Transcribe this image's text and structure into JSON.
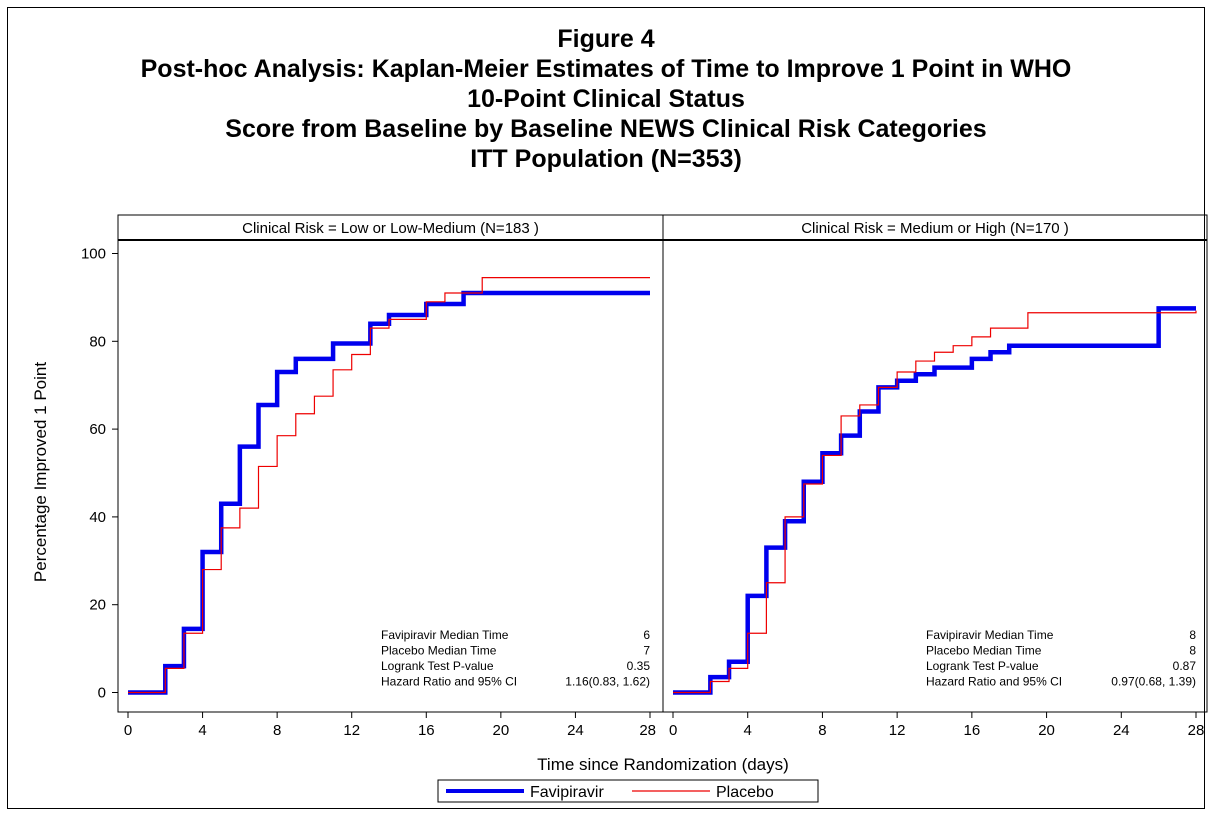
{
  "titles": [
    "Figure 4",
    "Post-hoc Analysis: Kaplan-Meier Estimates of Time to Improve 1 Point in WHO",
    "10-Point Clinical Status",
    "Score from Baseline by Baseline NEWS Clinical Risk Categories",
    "ITT Population (N=353)"
  ],
  "colors": {
    "favipiravir": "#0000ee",
    "placebo": "#ee0000"
  },
  "chart_data": {
    "type": "line",
    "step": true,
    "xlabel": "Time since Randomization (days)",
    "ylabel": "Percentage Improved 1 Point",
    "xlim": [
      0,
      28
    ],
    "ylim": [
      0,
      100
    ],
    "xticks": [
      0,
      4,
      8,
      12,
      16,
      20,
      24,
      28
    ],
    "yticks": [
      0,
      20,
      40,
      60,
      80,
      100
    ],
    "legend": {
      "position": "bottom-center",
      "entries": [
        "Favipiravir",
        "Placebo"
      ]
    },
    "panels": [
      {
        "title": "Clinical Risk = Low or Low-Medium (N=183 )",
        "series": [
          {
            "name": "Favipiravir",
            "x": [
              0,
              2,
              3,
              4,
              5,
              6,
              7,
              8,
              9,
              11,
              13,
              14,
              16,
              18,
              28
            ],
            "y": [
              0,
              6,
              14.5,
              32,
              43,
              56,
              65.5,
              73,
              76,
              79.5,
              84,
              86,
              88.5,
              91,
              91
            ]
          },
          {
            "name": "Placebo",
            "x": [
              0,
              2,
              3,
              4,
              5,
              6,
              7,
              8,
              9,
              10,
              11,
              12,
              13,
              14,
              16,
              17,
              19,
              28
            ],
            "y": [
              0,
              5.5,
              13.5,
              28,
              37.5,
              42,
              51.5,
              58.5,
              63.5,
              67.5,
              73.5,
              77,
              83,
              85,
              89,
              91,
              94.5,
              94.5
            ]
          }
        ],
        "stats": [
          {
            "label": "Favipiravir Median Time",
            "value": "6"
          },
          {
            "label": "Placebo Median Time",
            "value": "7"
          },
          {
            "label": "Logrank Test P-value",
            "value": "0.35"
          },
          {
            "label": "Hazard Ratio and 95% CI",
            "value": "1.16(0.83, 1.62)"
          }
        ]
      },
      {
        "title": "Clinical Risk = Medium or High (N=170 )",
        "series": [
          {
            "name": "Favipiravir",
            "x": [
              0,
              2,
              3,
              4,
              5,
              6,
              7,
              8,
              9,
              10,
              11,
              12,
              13,
              14,
              16,
              17,
              18,
              26,
              28
            ],
            "y": [
              0,
              3.5,
              7,
              22,
              33,
              39,
              48,
              54.5,
              58.5,
              64,
              69.5,
              71,
              72.5,
              74,
              76,
              77.5,
              79,
              87.5,
              87.5
            ]
          },
          {
            "name": "Placebo",
            "x": [
              0,
              2,
              3,
              4,
              5,
              6,
              7,
              8,
              9,
              10,
              11,
              12,
              13,
              14,
              15,
              16,
              17,
              19,
              28
            ],
            "y": [
              0,
              2.5,
              5.5,
              13.5,
              25,
              40,
              47.5,
              54,
              63,
              65.5,
              69.5,
              73,
              75.5,
              77.5,
              79,
              81,
              83,
              86.5,
              87
            ]
          }
        ],
        "stats": [
          {
            "label": "Favipiravir Median Time",
            "value": "8"
          },
          {
            "label": "Placebo Median Time",
            "value": "8"
          },
          {
            "label": "Logrank Test P-value",
            "value": "0.87"
          },
          {
            "label": "Hazard Ratio and 95% CI",
            "value": "0.97(0.68, 1.39)"
          }
        ]
      }
    ]
  }
}
